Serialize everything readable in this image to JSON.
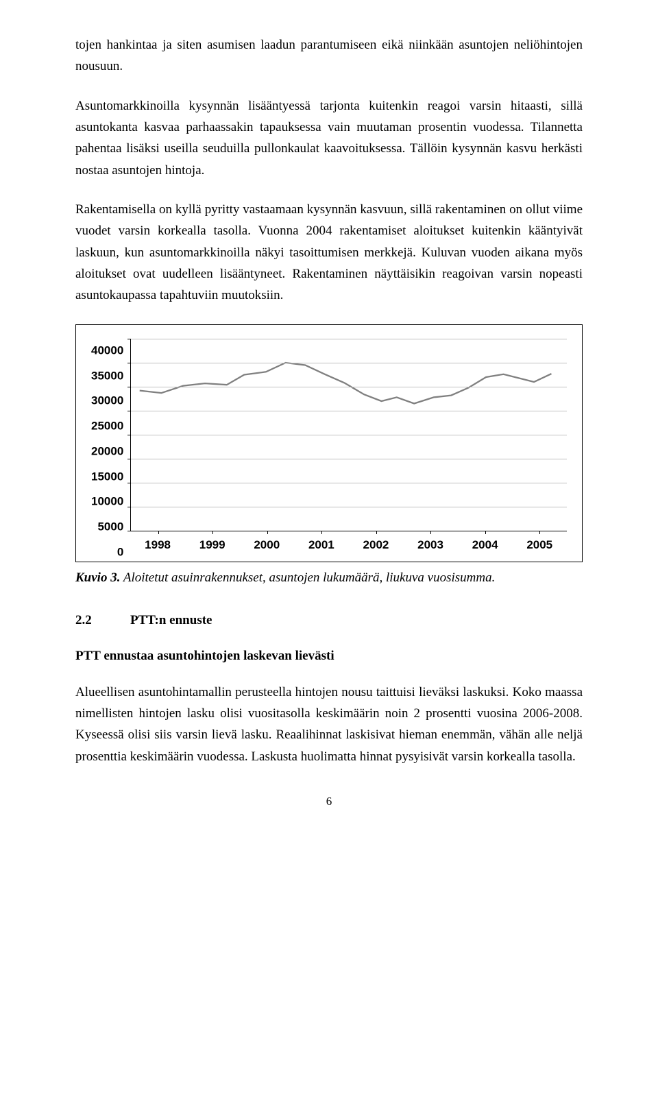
{
  "paragraphs": {
    "p1": "tojen hankintaa ja siten asumisen laadun parantumiseen eikä niinkään asuntojen neliöhintojen nousuun.",
    "p2": "Asuntomarkkinoilla kysynnän lisääntyessä tarjonta kuitenkin reagoi varsin hitaasti, sillä asuntokanta kasvaa parhaassakin tapauksessa vain muutaman prosentin vuodessa. Tilannetta pahentaa lisäksi useilla seuduilla pullonkaulat kaavoituksessa. Tällöin kysynnän kasvu herkästi nostaa asuntojen hintoja.",
    "p3": "Rakentamisella on kyllä pyritty vastaamaan kysynnän kasvuun, sillä rakentaminen on ollut viime vuodet varsin korkealla tasolla. Vuonna 2004 rakentamiset aloitukset kuitenkin kääntyivät laskuun, kun asuntomarkkinoilla näkyi tasoittumisen merkkejä. Kuluvan vuoden aikana myös aloitukset ovat uudelleen lisääntyneet. Rakentaminen näyttäisikin reagoivan varsin nopeasti asuntokaupassa tapahtuviin muutoksiin.",
    "p4": "Alueellisen asuntohintamallin perusteella hintojen nousu taittuisi lieväksi laskuksi. Koko maassa nimellisten hintojen lasku olisi vuositasolla keskimäärin noin 2 prosentti vuosina 2006-2008. Kyseessä olisi siis varsin lievä lasku. Reaalihinnat laskisivat hieman enemmän, vähän alle neljä prosenttia keskimäärin vuodessa. Laskusta huolimatta hinnat pysyisivät varsin korkealla tasolla."
  },
  "chart": {
    "type": "line",
    "ylim": [
      0,
      40000
    ],
    "ytick_step": 5000,
    "y_ticks": [
      "40000",
      "35000",
      "30000",
      "25000",
      "20000",
      "15000",
      "10000",
      "5000",
      "0"
    ],
    "x_labels": [
      "1998",
      "1999",
      "2000",
      "2001",
      "2002",
      "2003",
      "2004",
      "2005"
    ],
    "line_color": "#808080",
    "line_width": 2.3,
    "grid_color": "#bfbfbf",
    "background_color": "#ffffff",
    "label_fontsize": 17,
    "points": [
      {
        "x": 0.02,
        "y": 29200
      },
      {
        "x": 0.07,
        "y": 28700
      },
      {
        "x": 0.12,
        "y": 30200
      },
      {
        "x": 0.17,
        "y": 30700
      },
      {
        "x": 0.22,
        "y": 30400
      },
      {
        "x": 0.26,
        "y": 32500
      },
      {
        "x": 0.31,
        "y": 33100
      },
      {
        "x": 0.355,
        "y": 35000
      },
      {
        "x": 0.4,
        "y": 34500
      },
      {
        "x": 0.445,
        "y": 32600
      },
      {
        "x": 0.49,
        "y": 30800
      },
      {
        "x": 0.535,
        "y": 28400
      },
      {
        "x": 0.575,
        "y": 27000
      },
      {
        "x": 0.61,
        "y": 27800
      },
      {
        "x": 0.65,
        "y": 26500
      },
      {
        "x": 0.695,
        "y": 27800
      },
      {
        "x": 0.735,
        "y": 28200
      },
      {
        "x": 0.775,
        "y": 29800
      },
      {
        "x": 0.815,
        "y": 32000
      },
      {
        "x": 0.855,
        "y": 32600
      },
      {
        "x": 0.89,
        "y": 31800
      },
      {
        "x": 0.925,
        "y": 31000
      },
      {
        "x": 0.965,
        "y": 32700
      }
    ]
  },
  "caption": {
    "label": "Kuvio 3.",
    "text": "  Aloitetut asuinrakennukset, asuntojen lukumäärä, liukuva vuosisumma."
  },
  "section": {
    "num": "2.2",
    "title": "PTT:n ennuste"
  },
  "subheading": "PTT ennustaa asuntohintojen laskevan lievästi",
  "page_number": "6"
}
